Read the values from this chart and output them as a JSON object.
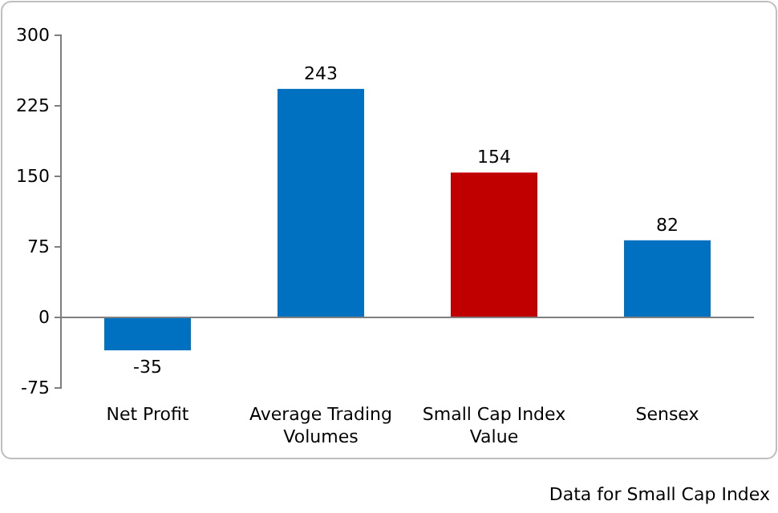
{
  "chart_data": {
    "type": "bar",
    "categories": [
      "Net Profit",
      "Average Trading Volumes",
      "Small Cap Index Value",
      "Sensex"
    ],
    "values": [
      -35,
      243,
      154,
      82
    ],
    "colors": [
      "#0070c0",
      "#0070c0",
      "#c00000",
      "#0070c0"
    ],
    "ylim": [
      -75,
      300
    ],
    "yticks": [
      -75,
      0,
      75,
      150,
      225,
      300
    ],
    "data_labels": true,
    "annotations": [
      "Data for Small Cap Index"
    ]
  }
}
